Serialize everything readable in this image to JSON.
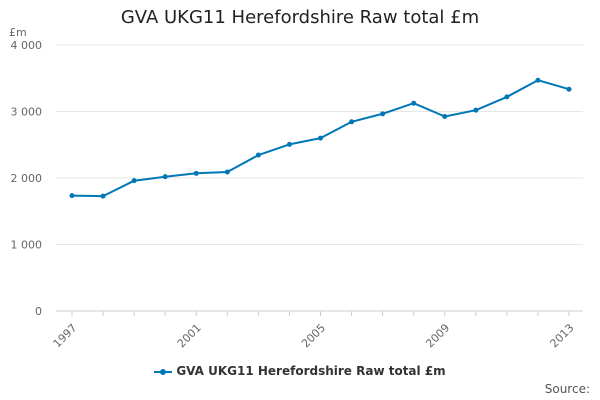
{
  "chart_data": {
    "type": "line",
    "title": "GVA UKG11 Herefordshire Raw total £m",
    "unit_label": "£m",
    "xlabel": "",
    "ylabel": "",
    "x": [
      "1997",
      "1998",
      "1999",
      "2000",
      "2001",
      "2002",
      "2003",
      "2004",
      "2005",
      "2006",
      "2007",
      "2008",
      "2009",
      "2010",
      "2011",
      "2012",
      "2013"
    ],
    "x_tick_labels": [
      "1997",
      "2001",
      "2005",
      "2009",
      "2013"
    ],
    "ylim": [
      0,
      4000
    ],
    "y_ticks": [
      0,
      1000,
      2000,
      3000,
      4000
    ],
    "y_tick_labels": [
      "0",
      "1 000",
      "2 000",
      "3 000",
      "4 000"
    ],
    "grid": true,
    "legend_position": "bottom",
    "series": [
      {
        "name": "GVA UKG11 Herefordshire Raw total £m",
        "color": "#0077b6",
        "values": [
          1735,
          1728,
          1960,
          2020,
          2070,
          2090,
          2345,
          2505,
          2600,
          2845,
          2965,
          3125,
          2925,
          3020,
          3220,
          3470,
          3335
        ]
      }
    ]
  },
  "source_label": "Source:"
}
